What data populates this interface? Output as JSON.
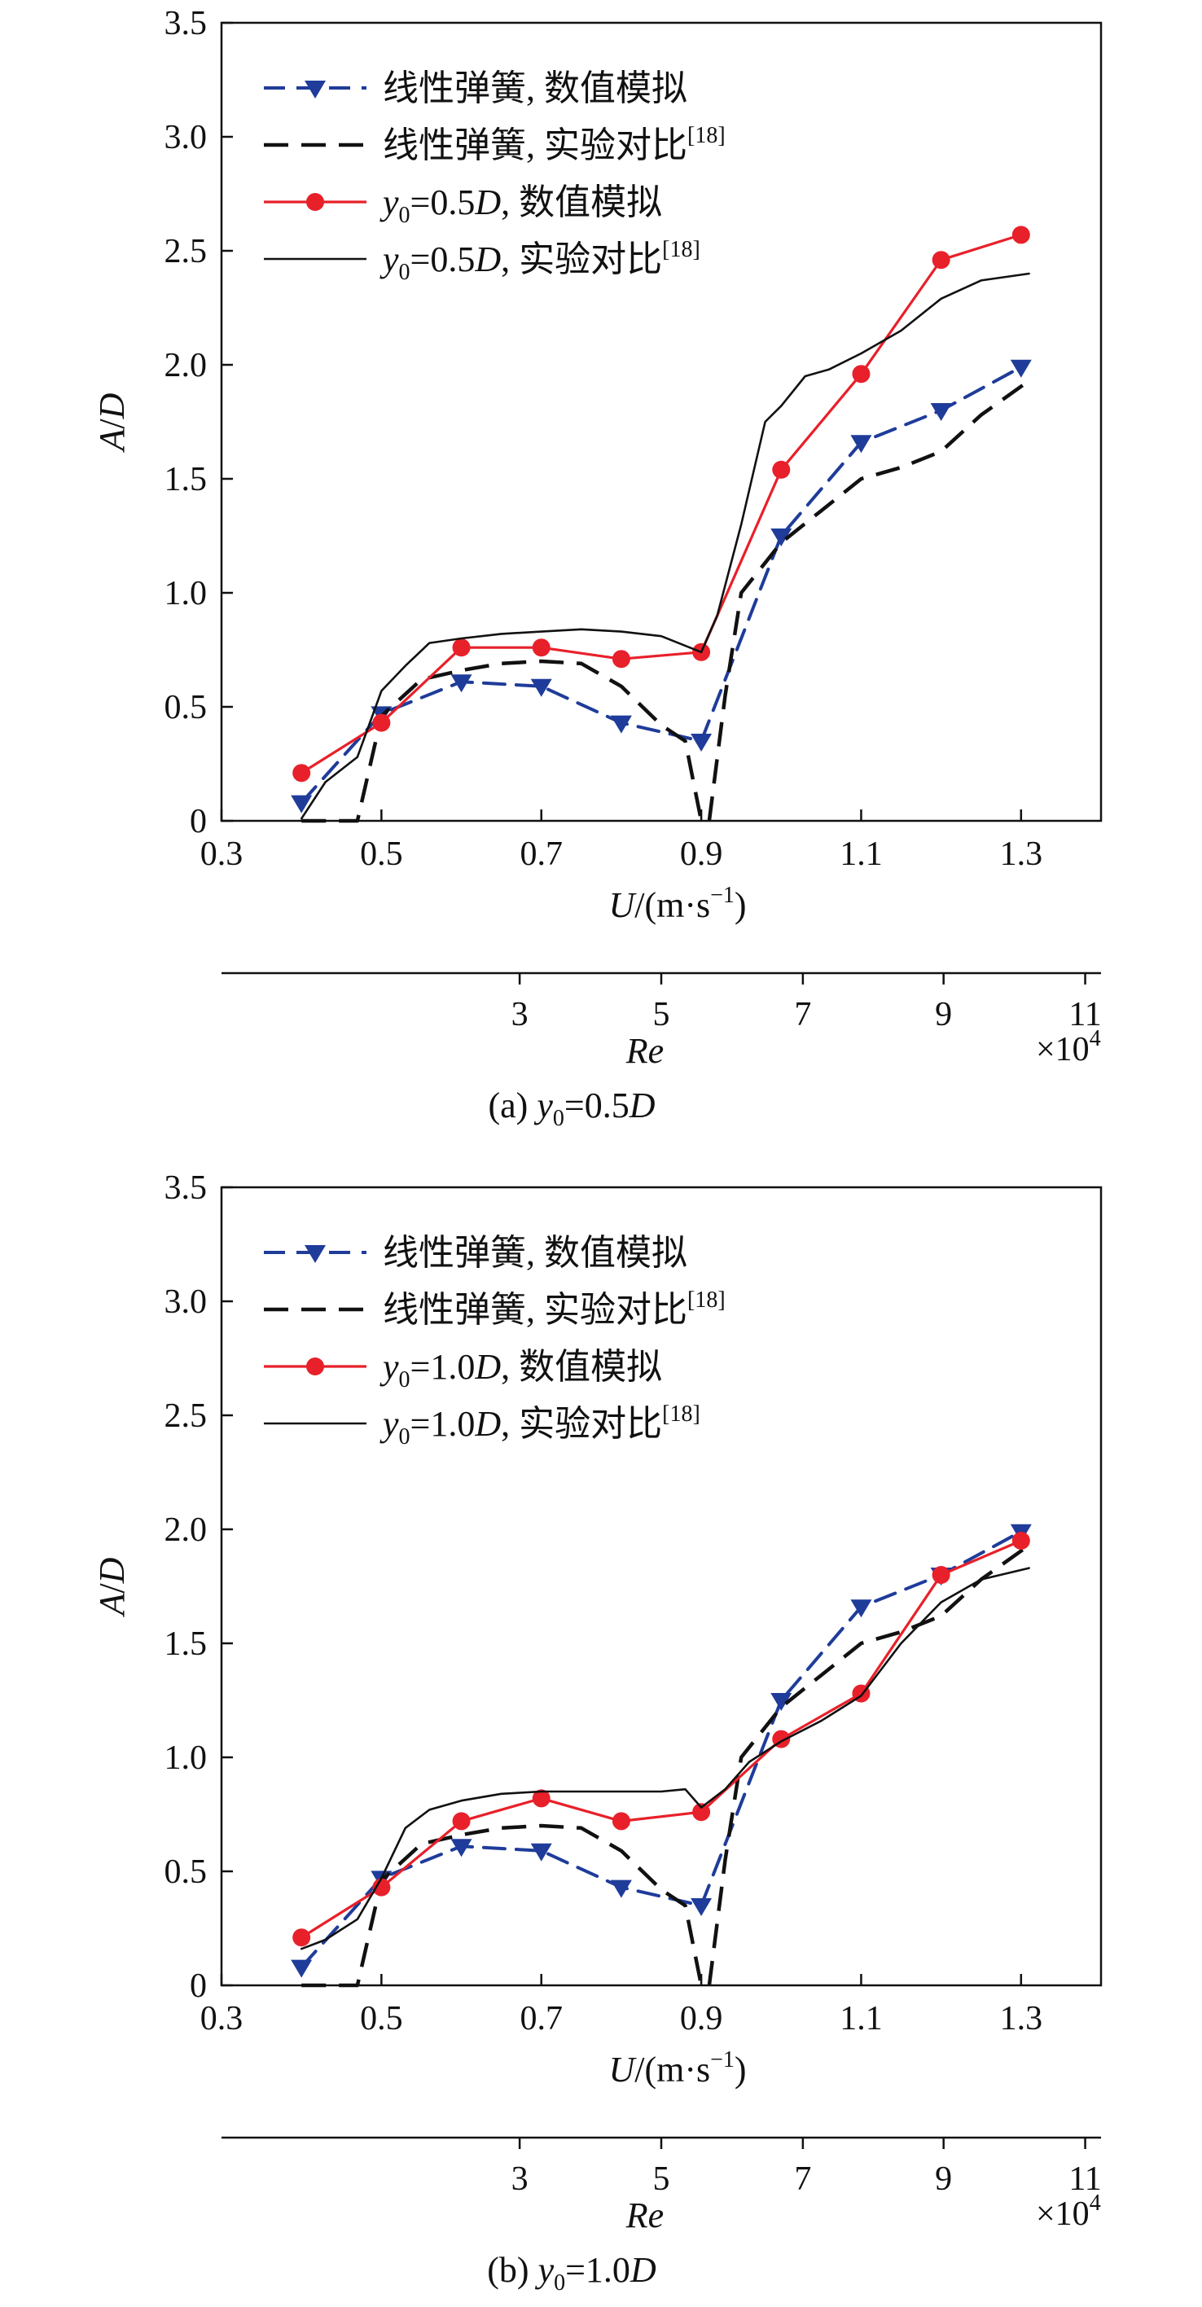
{
  "chart_data": [
    {
      "type": "line",
      "caption": {
        "prefix": "(a) ",
        "var": "y",
        "sub": "0",
        "eq": "=0.5",
        "unit": "D"
      },
      "xlabel": {
        "var": "U",
        "rest": "/(m·s",
        "sup": "−1",
        "close": ")"
      },
      "ylabel": {
        "a": "A",
        "slash": "/",
        "b": "D"
      },
      "re_axis": {
        "label": "Re",
        "multiplier": "×10",
        "multiplier_exp": "4",
        "ticks": [
          "3",
          "5",
          "7",
          "9",
          "11"
        ],
        "ticks_u": [
          0.339,
          0.5,
          0.661,
          0.821,
          0.982
        ]
      },
      "xlim": [
        0.3,
        1.4
      ],
      "ylim": [
        0,
        3.5
      ],
      "xticks": [
        "0.3",
        "0.5",
        "0.7",
        "0.9",
        "1.1",
        "1.3"
      ],
      "yticks": [
        "0",
        "0.5",
        "1.0",
        "1.5",
        "2.0",
        "2.5",
        "3.0",
        "3.5"
      ],
      "legend_placement": "top-left",
      "series": [
        {
          "name": "线性弹簧, 数值模拟",
          "style": "dashed-triangle",
          "color": "#1f3c9a",
          "x": [
            0.4,
            0.5,
            0.6,
            0.7,
            0.8,
            0.9,
            1.0,
            1.1,
            1.2,
            1.3
          ],
          "y": [
            0.08,
            0.47,
            0.61,
            0.59,
            0.43,
            0.35,
            1.25,
            1.66,
            1.8,
            1.99
          ]
        },
        {
          "name": "线性弹簧, 实验对比",
          "name_sup": "[18]",
          "style": "dashed",
          "color": "#111111",
          "x": [
            0.4,
            0.47,
            0.5,
            0.55,
            0.6,
            0.65,
            0.7,
            0.75,
            0.8,
            0.85,
            0.88,
            0.9,
            0.91,
            0.93,
            0.95,
            1.0,
            1.05,
            1.1,
            1.15,
            1.2,
            1.25,
            1.31
          ],
          "y": [
            0.0,
            0.0,
            0.46,
            0.62,
            0.66,
            0.69,
            0.7,
            0.69,
            0.59,
            0.42,
            0.35,
            0.0,
            0.0,
            0.55,
            1.0,
            1.22,
            1.36,
            1.5,
            1.55,
            1.62,
            1.78,
            1.93
          ]
        },
        {
          "name_var": "y",
          "name_sub": "0",
          "name_rest": "=0.5",
          "name_unit": "D",
          "name_tail": ", 数值模拟",
          "style": "solid-circle",
          "color": "#e8202a",
          "x": [
            0.4,
            0.5,
            0.6,
            0.7,
            0.8,
            0.9,
            1.0,
            1.1,
            1.2,
            1.3
          ],
          "y": [
            0.21,
            0.43,
            0.76,
            0.76,
            0.71,
            0.74,
            1.54,
            1.96,
            2.46,
            2.57
          ]
        },
        {
          "name_var": "y",
          "name_sub": "0",
          "name_rest": "=0.5",
          "name_unit": "D",
          "name_tail": ", 实验对比",
          "name_sup": "[18]",
          "style": "solid-thin",
          "color": "#111111",
          "x": [
            0.4,
            0.43,
            0.47,
            0.5,
            0.53,
            0.56,
            0.6,
            0.65,
            0.7,
            0.75,
            0.8,
            0.85,
            0.9,
            0.92,
            0.95,
            0.98,
            1.0,
            1.03,
            1.06,
            1.1,
            1.15,
            1.2,
            1.25,
            1.31
          ],
          "y": [
            0.01,
            0.17,
            0.28,
            0.57,
            0.68,
            0.78,
            0.8,
            0.82,
            0.83,
            0.84,
            0.83,
            0.81,
            0.74,
            0.9,
            1.3,
            1.75,
            1.82,
            1.95,
            1.98,
            2.05,
            2.15,
            2.29,
            2.37,
            2.4
          ]
        }
      ]
    },
    {
      "type": "line",
      "caption": {
        "prefix": "(b) ",
        "var": "y",
        "sub": "0",
        "eq": "=1.0",
        "unit": "D"
      },
      "xlabel": {
        "var": "U",
        "rest": "/(m·s",
        "sup": "−1",
        "close": ")"
      },
      "ylabel": {
        "a": "A",
        "slash": "/",
        "b": "D"
      },
      "re_axis": {
        "label": "Re",
        "multiplier": "×10",
        "multiplier_exp": "4",
        "ticks": [
          "3",
          "5",
          "7",
          "9",
          "11"
        ],
        "ticks_u": [
          0.339,
          0.5,
          0.661,
          0.821,
          0.982
        ]
      },
      "xlim": [
        0.3,
        1.4
      ],
      "ylim": [
        0,
        3.5
      ],
      "xticks": [
        "0.3",
        "0.5",
        "0.7",
        "0.9",
        "1.1",
        "1.3"
      ],
      "yticks": [
        "0",
        "0.5",
        "1.0",
        "1.5",
        "2.0",
        "2.5",
        "3.0",
        "3.5"
      ],
      "legend_placement": "top-left",
      "series": [
        {
          "name": "线性弹簧, 数值模拟",
          "style": "dashed-triangle",
          "color": "#1f3c9a",
          "x": [
            0.4,
            0.5,
            0.6,
            0.7,
            0.8,
            0.9,
            1.0,
            1.1,
            1.2,
            1.3
          ],
          "y": [
            0.08,
            0.47,
            0.61,
            0.59,
            0.43,
            0.35,
            1.25,
            1.66,
            1.8,
            1.99
          ]
        },
        {
          "name": "线性弹簧, 实验对比",
          "name_sup": "[18]",
          "style": "dashed",
          "color": "#111111",
          "x": [
            0.4,
            0.47,
            0.5,
            0.55,
            0.6,
            0.65,
            0.7,
            0.75,
            0.8,
            0.85,
            0.88,
            0.9,
            0.91,
            0.93,
            0.95,
            1.0,
            1.05,
            1.1,
            1.15,
            1.2,
            1.25,
            1.31
          ],
          "y": [
            0.0,
            0.0,
            0.46,
            0.62,
            0.66,
            0.69,
            0.7,
            0.69,
            0.59,
            0.42,
            0.35,
            0.0,
            0.0,
            0.55,
            1.0,
            1.22,
            1.36,
            1.5,
            1.55,
            1.62,
            1.78,
            1.93
          ]
        },
        {
          "name_var": "y",
          "name_sub": "0",
          "name_rest": "=1.0",
          "name_unit": "D",
          "name_tail": ", 数值模拟",
          "style": "solid-circle",
          "color": "#e8202a",
          "x": [
            0.4,
            0.5,
            0.6,
            0.7,
            0.8,
            0.9,
            1.0,
            1.1,
            1.2,
            1.3
          ],
          "y": [
            0.21,
            0.43,
            0.72,
            0.82,
            0.72,
            0.76,
            1.08,
            1.28,
            1.8,
            1.95
          ]
        },
        {
          "name_var": "y",
          "name_sub": "0",
          "name_rest": "=1.0",
          "name_unit": "D",
          "name_tail": ", 实验对比",
          "name_sup": "[18]",
          "style": "solid-thin",
          "color": "#111111",
          "x": [
            0.4,
            0.43,
            0.47,
            0.5,
            0.53,
            0.56,
            0.6,
            0.65,
            0.7,
            0.75,
            0.8,
            0.85,
            0.88,
            0.9,
            0.93,
            0.96,
            1.0,
            1.05,
            1.1,
            1.15,
            1.2,
            1.25,
            1.31
          ],
          "y": [
            0.16,
            0.2,
            0.29,
            0.47,
            0.69,
            0.77,
            0.81,
            0.84,
            0.85,
            0.85,
            0.85,
            0.85,
            0.86,
            0.78,
            0.86,
            0.98,
            1.07,
            1.16,
            1.27,
            1.5,
            1.68,
            1.78,
            1.83
          ]
        }
      ]
    }
  ]
}
